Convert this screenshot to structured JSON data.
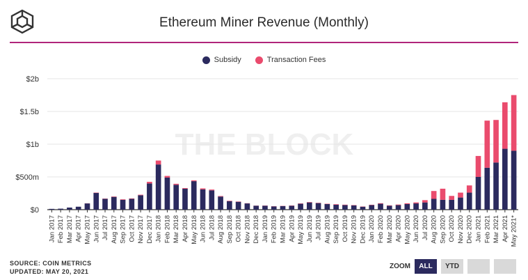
{
  "header": {
    "title": "Ethereum Miner Revenue (Monthly)"
  },
  "watermark": "THE BLOCK",
  "footer": {
    "source": "SOURCE: COIN METRICS",
    "updated": "UPDATED: MAY 20, 2021"
  },
  "zoom": {
    "label": "ZOOM",
    "buttons": [
      "ALL",
      "YTD",
      "",
      ""
    ],
    "active": "ALL"
  },
  "colors": {
    "subsidy": "#2b2a5e",
    "fees": "#ea4b6d",
    "accent": "#b0257a"
  },
  "chart_data": {
    "type": "bar",
    "stacked": true,
    "title": "Ethereum Miner Revenue (Monthly)",
    "legend": "top-center",
    "grid": true,
    "ylim": [
      0,
      2000000000
    ],
    "yticks": [
      {
        "value": 0,
        "label": "$0"
      },
      {
        "value": 500000000,
        "label": "$500m"
      },
      {
        "value": 1000000000,
        "label": "$1b"
      },
      {
        "value": 1500000000,
        "label": "$1.5b"
      },
      {
        "value": 2000000000,
        "label": "$2b"
      }
    ],
    "categories": [
      "Jan 2017",
      "Feb 2017",
      "Mar 2017",
      "Apr 2017",
      "May 2017",
      "Jun 2017",
      "Jul 2017",
      "Aug 2017",
      "Sep 2017",
      "Oct 2017",
      "Nov 2017",
      "Dec 2017",
      "Jan 2018",
      "Feb 2018",
      "Mar 2018",
      "Apr 2018",
      "May 2018",
      "Jun 2018",
      "Jul 2018",
      "Aug 2018",
      "Sep 2018",
      "Oct 2018",
      "Nov 2018",
      "Dec 2018",
      "Jan 2019",
      "Feb 2019",
      "Mar 2019",
      "Apr 2019",
      "May 2019",
      "Jun 2019",
      "Jul 2019",
      "Aug 2019",
      "Sep 2019",
      "Oct 2019",
      "Nov 2019",
      "Dec 2019",
      "Jan 2020",
      "Feb 2020",
      "Mar 2020",
      "Apr 2020",
      "May 2020",
      "Jun 2020",
      "Jul 2020",
      "Aug 2020",
      "Sep 2020",
      "Oct 2020",
      "Nov 2020",
      "Dec 2020",
      "Jan 2021",
      "Feb 2021",
      "Mar 2021",
      "Apr 2021",
      "May 2021*"
    ],
    "series": [
      {
        "name": "Subsidy",
        "color": "#2b2a5e",
        "values": [
          12000000,
          15000000,
          32000000,
          45000000,
          95000000,
          255000000,
          165000000,
          195000000,
          150000000,
          165000000,
          220000000,
          400000000,
          690000000,
          490000000,
          380000000,
          320000000,
          435000000,
          310000000,
          295000000,
          200000000,
          130000000,
          120000000,
          95000000,
          60000000,
          60000000,
          50000000,
          55000000,
          60000000,
          90000000,
          110000000,
          100000000,
          85000000,
          75000000,
          70000000,
          65000000,
          45000000,
          70000000,
          90000000,
          60000000,
          70000000,
          85000000,
          95000000,
          110000000,
          165000000,
          150000000,
          150000000,
          185000000,
          260000000,
          500000000,
          640000000,
          720000000,
          930000000,
          900000000
        ]
      },
      {
        "name": "Transaction Fees",
        "color": "#ea4b6d",
        "values": [
          0,
          0,
          0,
          0,
          2000000,
          5000000,
          4000000,
          6000000,
          8000000,
          6000000,
          8000000,
          25000000,
          60000000,
          25000000,
          15000000,
          10000000,
          12000000,
          15000000,
          12000000,
          8000000,
          6000000,
          5000000,
          3000000,
          2000000,
          3000000,
          3000000,
          3000000,
          4000000,
          5000000,
          6000000,
          5000000,
          5000000,
          8000000,
          6000000,
          5000000,
          4000000,
          5000000,
          8000000,
          6000000,
          8000000,
          12000000,
          15000000,
          35000000,
          120000000,
          170000000,
          60000000,
          75000000,
          110000000,
          320000000,
          720000000,
          650000000,
          710000000,
          850000000
        ]
      }
    ]
  }
}
